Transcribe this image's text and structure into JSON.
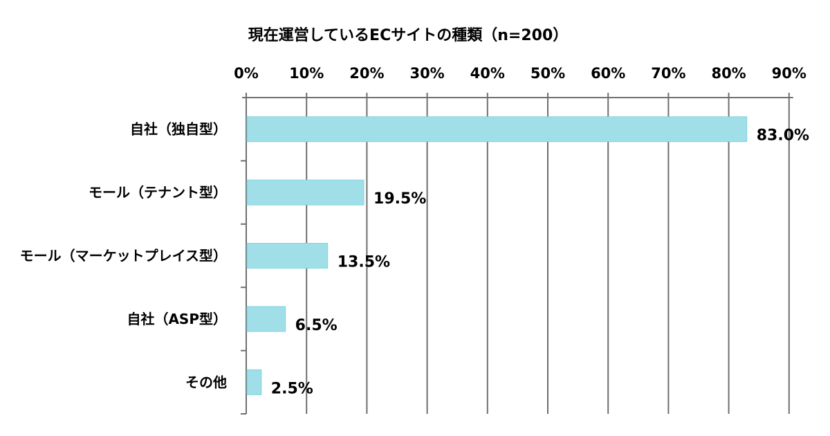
{
  "chart_data": {
    "type": "bar",
    "orientation": "horizontal",
    "title": "現在運営しているECサイトの種類（n=200）",
    "categories": [
      "自社（独自型）",
      "モール（テナント型）",
      "モール（マーケットプレイス型）",
      "自社（ASP型）",
      "その他"
    ],
    "values": [
      83.0,
      19.5,
      13.5,
      6.5,
      2.5
    ],
    "data_labels": [
      "83.0%",
      "19.5%",
      "13.5%",
      "6.5%",
      "2.5%"
    ],
    "xlim": [
      0,
      90
    ],
    "x_ticks": [
      "0%",
      "10%",
      "20%",
      "30%",
      "40%",
      "50%",
      "60%",
      "70%",
      "80%",
      "90%"
    ],
    "x_axis_position": "top",
    "grid": true,
    "xlabel": "",
    "ylabel": "",
    "colors": {
      "bar": "#a0dfe8",
      "bar_edge": "#7fd3e0",
      "grid": "#6e6e6e"
    }
  }
}
